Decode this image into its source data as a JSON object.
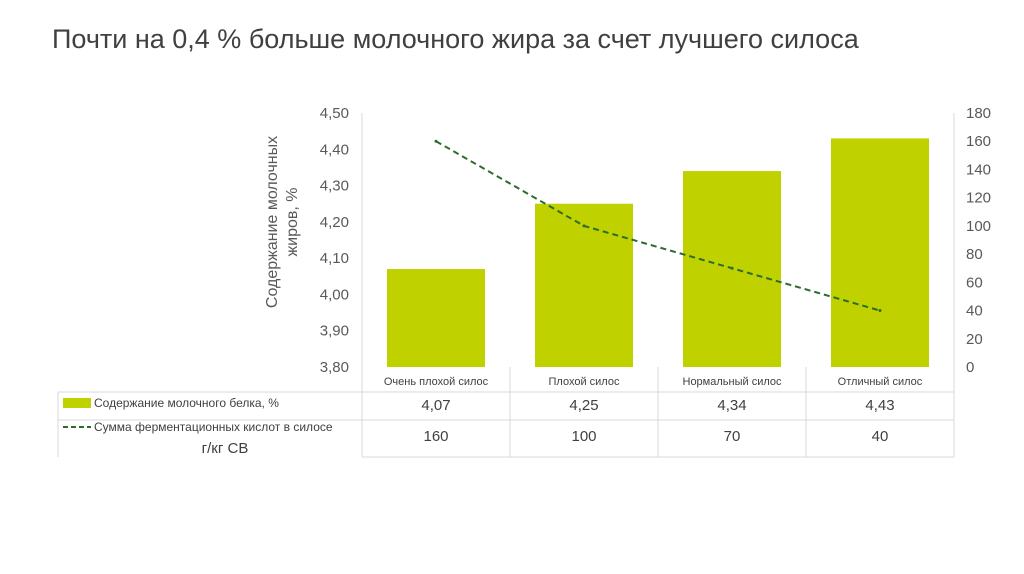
{
  "slide": {
    "title": "Почти на 0,4 % больше молочного жира за счет лучшего силоса"
  },
  "chart_data": {
    "type": "bar",
    "categories": [
      "Очень плохой силос",
      "Плохой силос",
      "Нормальный силос",
      "Отличный силос"
    ],
    "series": [
      {
        "name": "Содержание молочного белка, %",
        "type": "bar",
        "axis": "left",
        "color": "#bfd200",
        "values": [
          4.07,
          4.25,
          4.34,
          4.43
        ],
        "labels": [
          "4,07",
          "4,25",
          "4,34",
          "4,43"
        ]
      },
      {
        "name": "Сумма ферментационных кислот в силосе",
        "type": "line",
        "style": "dashed",
        "axis": "right",
        "color": "#2e6b2e",
        "values": [
          160,
          100,
          70,
          40
        ],
        "labels": [
          "160",
          "100",
          "70",
          "40"
        ]
      }
    ],
    "ylabel": "Содержание молочных жиров, %",
    "ylim": [
      3.8,
      4.5
    ],
    "yticks": [
      "3,80",
      "3,90",
      "4,00",
      "4,10",
      "4,20",
      "4,30",
      "4,40",
      "4,50"
    ],
    "y2lim": [
      0,
      180
    ],
    "y2ticks": [
      "0",
      "20",
      "40",
      "60",
      "80",
      "100",
      "120",
      "140",
      "160",
      "180"
    ],
    "table_unit": "г/кг СВ",
    "legend_position": "data-table",
    "grid": false
  }
}
